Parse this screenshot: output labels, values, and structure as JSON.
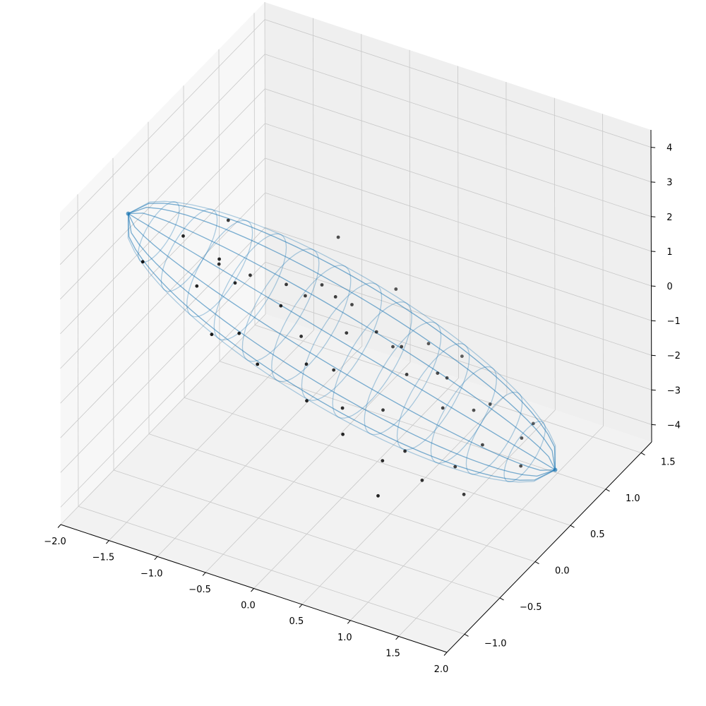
{
  "chart_data": {
    "type": "scatter",
    "projection": "3d",
    "title": "",
    "xlabel": "",
    "ylabel": "",
    "zlabel": "",
    "xlim": [
      -2.0,
      2.0
    ],
    "ylim": [
      -1.25,
      1.65
    ],
    "zlim": [
      -4.5,
      4.5
    ],
    "x_ticks": [
      "−2.0",
      "−1.5",
      "−1.0",
      "−0.5",
      "0.0",
      "0.5",
      "1.0",
      "1.5",
      "2.0"
    ],
    "y_ticks": [
      "−1.0",
      "−0.5",
      "0.0",
      "0.5",
      "1.0",
      "1.5"
    ],
    "z_ticks": [
      "−4",
      "−3",
      "−2",
      "−1",
      "0",
      "1",
      "2",
      "3",
      "4"
    ],
    "grid": true,
    "pane_color": "#f2f2f2",
    "grid_color": "#c8c8c8",
    "ellipsoid": {
      "style": "wireframe",
      "color": "#1f77b4",
      "alpha": 0.35,
      "center": [
        0.0,
        0.0,
        0.0
      ],
      "semi_axes": [
        0.55,
        0.55,
        4.5
      ],
      "axis_direction": [
        0.35,
        0.2,
        -0.92
      ],
      "endpoints": [
        [
          -1.55,
          -0.9,
          4.15
        ],
        [
          1.55,
          0.9,
          -4.15
        ]
      ]
    },
    "series": [
      {
        "color": "#000000",
        "marker_size": 3,
        "points": [
          [
            -1.2,
            -0.6,
            3.2
          ],
          [
            -0.9,
            -0.5,
            2.6
          ],
          [
            -1.4,
            -0.9,
            2.9
          ],
          [
            -1.05,
            -0.3,
            1.9
          ],
          [
            -0.7,
            -0.55,
            2.2
          ],
          [
            -0.5,
            -0.1,
            1.4
          ],
          [
            -0.3,
            -0.45,
            1.7
          ],
          [
            -0.1,
            0.05,
            1.1
          ],
          [
            -0.55,
            -0.7,
            1.2
          ],
          [
            -0.2,
            -0.3,
            0.6
          ],
          [
            0.05,
            0.0,
            0.3
          ],
          [
            0.25,
            0.15,
            0.2
          ],
          [
            -0.35,
            0.2,
            0.9
          ],
          [
            -0.8,
            -0.2,
            1.6
          ],
          [
            0.4,
            0.3,
            -0.4
          ],
          [
            0.6,
            0.1,
            -0.6
          ],
          [
            0.1,
            -0.25,
            -0.2
          ],
          [
            0.3,
            -0.4,
            -0.8
          ],
          [
            0.7,
            0.4,
            -1.1
          ],
          [
            0.9,
            0.2,
            -1.5
          ],
          [
            0.5,
            -0.1,
            -1.3
          ],
          [
            1.0,
            0.5,
            -2.1
          ],
          [
            1.2,
            0.35,
            -2.6
          ],
          [
            0.8,
            -0.2,
            -2.0
          ],
          [
            1.35,
            0.7,
            -3.0
          ],
          [
            1.1,
            0.1,
            -2.8
          ],
          [
            1.45,
            0.55,
            -3.4
          ],
          [
            0.65,
            0.6,
            -1.7
          ],
          [
            0.2,
            0.45,
            -0.9
          ],
          [
            -0.15,
            0.35,
            0.2
          ],
          [
            -0.45,
            0.1,
            0.7
          ],
          [
            0.0,
            -0.5,
            0.4
          ],
          [
            0.15,
            -0.7,
            -0.1
          ],
          [
            0.45,
            -0.6,
            -1.0
          ],
          [
            0.75,
            -0.45,
            -1.8
          ],
          [
            1.05,
            -0.3,
            -2.4
          ],
          [
            -0.65,
            -0.95,
            1.6
          ],
          [
            -0.95,
            -0.75,
            2.3
          ],
          [
            0.35,
            0.75,
            -1.3
          ],
          [
            0.95,
            0.8,
            -2.6
          ],
          [
            -0.25,
            -0.85,
            0.9
          ],
          [
            0.55,
            0.95,
            -1.9
          ],
          [
            1.25,
            1.0,
            -3.3
          ],
          [
            -1.1,
            -0.1,
            2.7
          ],
          [
            -0.4,
            0.5,
            1.6
          ],
          [
            0.05,
            0.7,
            0.1
          ],
          [
            0.85,
            -0.65,
            -2.3
          ],
          [
            1.3,
            -0.05,
            -3.1
          ]
        ]
      }
    ]
  }
}
